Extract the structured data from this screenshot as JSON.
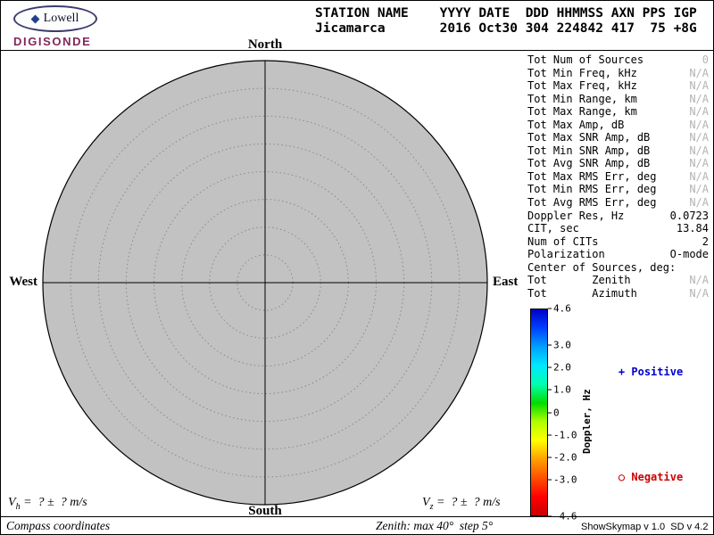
{
  "logo": {
    "brand": "Lowell",
    "product": "DIGISONDE"
  },
  "header": {
    "line1": "STATION NAME    YYYY DATE  DDD HHMMSS AXN PPS IGP",
    "line2": "Jicamarca       2016 Oct30 304 224842 417  75 +8G"
  },
  "compass": {
    "north": "North",
    "south": "South",
    "west": "West",
    "east": "East"
  },
  "stats": {
    "rows": [
      {
        "label": "Tot Num of Sources",
        "value": "0",
        "dim": true
      },
      {
        "label": "Tot Min Freq, kHz",
        "value": "N/A",
        "dim": true
      },
      {
        "label": "Tot Max Freq, kHz",
        "value": "N/A",
        "dim": true
      },
      {
        "label": "Tot Min Range, km",
        "value": "N/A",
        "dim": true
      },
      {
        "label": "Tot Max Range, km",
        "value": "N/A",
        "dim": true
      },
      {
        "label": "Tot Max Amp, dB",
        "value": "N/A",
        "dim": true
      },
      {
        "label": "Tot Max SNR Amp, dB",
        "value": "N/A",
        "dim": true
      },
      {
        "label": "Tot Min SNR Amp, dB",
        "value": "N/A",
        "dim": true
      },
      {
        "label": "Tot Avg SNR Amp, dB",
        "value": "N/A",
        "dim": true
      },
      {
        "label": "Tot Max RMS Err, deg",
        "value": "N/A",
        "dim": true
      },
      {
        "label": "Tot Min RMS Err, deg",
        "value": "N/A",
        "dim": true
      },
      {
        "label": "Tot Avg RMS Err, deg",
        "value": "N/A",
        "dim": true
      },
      {
        "label": "Doppler Res, Hz",
        "value": "0.0723",
        "dim": false
      },
      {
        "label": "CIT, sec",
        "value": "13.84",
        "dim": false
      },
      {
        "label": "Num of CITs",
        "value": "2",
        "dim": false
      },
      {
        "label": "Polarization",
        "value": "O-mode",
        "dim": false
      },
      {
        "label": "Center of Sources, deg:",
        "value": "",
        "dim": false
      },
      {
        "label": "Tot       Zenith",
        "value": "N/A",
        "dim": true
      },
      {
        "label": "Tot       Azimuth",
        "value": "N/A",
        "dim": true
      }
    ]
  },
  "colorbar": {
    "title": "Doppler, Hz",
    "max": 4.6,
    "min": -4.6,
    "ticks": [
      4.6,
      3.0,
      2.0,
      1.0,
      0,
      -1.0,
      -2.0,
      -3.0,
      -4.6
    ],
    "tick_labels": [
      "4.6",
      "3.0",
      "2.0",
      "1.0",
      "0",
      "-1.0",
      "-2.0",
      "-3.0",
      "-4.6"
    ],
    "gradient_colors_top_to_bottom": [
      "#0000c8",
      "#0040ff",
      "#00a0ff",
      "#00e8ff",
      "#00ffb0",
      "#00dc00",
      "#b0ff00",
      "#ffff00",
      "#ffa000",
      "#ff5000",
      "#ff0000",
      "#c80000"
    ]
  },
  "legend": {
    "positive": {
      "icon": "+",
      "label": "Positive",
      "color": "#0000cc"
    },
    "negative": {
      "icon": "○",
      "label": "Negative",
      "color": "#cc0000"
    }
  },
  "footer": {
    "vh": {
      "base": "V",
      "sub": "h",
      "rest": " =  ? ±  ? m/s"
    },
    "vz": {
      "base": "V",
      "sub": "z",
      "rest": " =  ? ±  ? m/s"
    },
    "coords_label": "Compass coordinates",
    "zenith_label": "Zenith: max 40°  step 5°",
    "version": "ShowSkymap v 1.0  SD v 4.2"
  },
  "chart": {
    "type": "polar_skymap",
    "coordinates": "compass",
    "max_zenith_deg": 40,
    "step_deg": 5,
    "sources": [],
    "doppler_scale_hz": {
      "min": -4.6,
      "max": 4.6
    }
  }
}
